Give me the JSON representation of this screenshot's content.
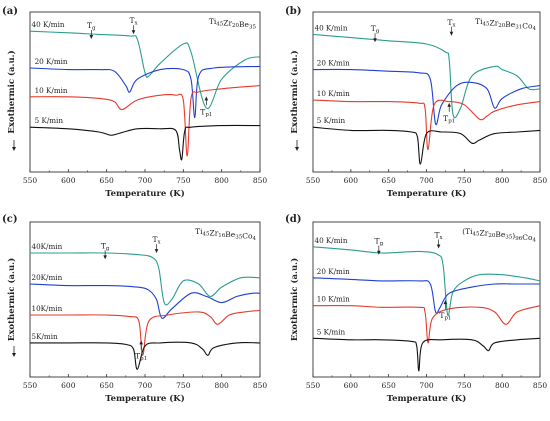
{
  "chart_data": [
    {
      "panel": "(a)",
      "type": "line",
      "title": "Ti45Zr20Be35",
      "title_parts": [
        {
          "t": "Ti",
          "sub": false
        },
        {
          "t": "45",
          "sub": true
        },
        {
          "t": "Zr",
          "sub": false
        },
        {
          "t": "20",
          "sub": true
        },
        {
          "t": "Be",
          "sub": false
        },
        {
          "t": "35",
          "sub": true
        }
      ],
      "xlabel": "Temperature (K)",
      "ylabel": "Exothermic (a.u.)",
      "xlim": [
        550,
        850
      ],
      "xticks": [
        "550",
        "600",
        "650",
        "700",
        "750",
        "800",
        "850"
      ],
      "down_arrow": true,
      "series": [
        {
          "name": "40 K/min",
          "color": "#2a9d8f",
          "baseline": 0.88,
          "x": [
            550,
            600,
            640,
            680,
            690,
            700,
            705,
            720,
            750,
            760,
            780,
            800,
            830,
            850
          ],
          "y": [
            0.88,
            0.87,
            0.86,
            0.85,
            0.83,
            0.62,
            0.6,
            0.68,
            0.8,
            0.75,
            0.4,
            0.58,
            0.7,
            0.72
          ]
        },
        {
          "name": "20 K/min",
          "color": "#1f3fd1",
          "baseline": 0.65,
          "x": [
            550,
            600,
            640,
            660,
            675,
            680,
            690,
            720,
            750,
            760,
            765,
            770,
            790,
            850
          ],
          "y": [
            0.65,
            0.64,
            0.64,
            0.63,
            0.54,
            0.5,
            0.58,
            0.64,
            0.64,
            0.58,
            0.34,
            0.6,
            0.65,
            0.66
          ]
        },
        {
          "name": "10 K/min",
          "color": "#e53b2c",
          "baseline": 0.47,
          "x": [
            550,
            600,
            640,
            660,
            670,
            690,
            720,
            740,
            750,
            755,
            760,
            770,
            800,
            850
          ],
          "y": [
            0.47,
            0.47,
            0.46,
            0.44,
            0.39,
            0.45,
            0.48,
            0.48,
            0.45,
            0.1,
            0.46,
            0.5,
            0.52,
            0.54
          ]
        },
        {
          "name": "5 K/min",
          "color": "#111111",
          "baseline": 0.28,
          "x": [
            550,
            600,
            640,
            655,
            665,
            690,
            720,
            740,
            745,
            748,
            752,
            760,
            800,
            850
          ],
          "y": [
            0.28,
            0.27,
            0.25,
            0.23,
            0.24,
            0.27,
            0.27,
            0.26,
            0.14,
            0.08,
            0.26,
            0.28,
            0.29,
            0.29
          ]
        }
      ],
      "annotations": [
        {
          "kind": "Tg",
          "label": "T",
          "sub": "g",
          "x": 630,
          "y": 0.9
        },
        {
          "kind": "Tx",
          "label": "T",
          "sub": "x",
          "x": 685,
          "y": 0.93
        },
        {
          "kind": "Tp1",
          "label": "T",
          "sub": "p1",
          "x": 780,
          "y": 0.36
        }
      ],
      "rate_labels": [
        "40 K/min",
        "20 K/min",
        "10 K/min",
        "5 K/min"
      ]
    },
    {
      "panel": "(b)",
      "type": "line",
      "title": "Ti45Zr20Be31Co4",
      "title_parts": [
        {
          "t": "Ti",
          "sub": false
        },
        {
          "t": "45",
          "sub": true
        },
        {
          "t": "Zr",
          "sub": false
        },
        {
          "t": "20",
          "sub": true
        },
        {
          "t": "Be",
          "sub": false
        },
        {
          "t": "31",
          "sub": true
        },
        {
          "t": "Co",
          "sub": false
        },
        {
          "t": "4",
          "sub": true
        }
      ],
      "xlabel": "Temperature (K)",
      "ylabel": "Exothermic (a.u.)",
      "xlim": [
        550,
        850
      ],
      "xticks": [
        "550",
        "600",
        "650",
        "700",
        "750",
        "800",
        "850"
      ],
      "down_arrow": true,
      "series": [
        {
          "name": "40 K/min",
          "color": "#2a9d8f",
          "baseline": 0.86,
          "x": [
            550,
            600,
            650,
            700,
            725,
            730,
            735,
            745,
            760,
            790,
            800,
            820,
            835,
            850
          ],
          "y": [
            0.86,
            0.84,
            0.82,
            0.8,
            0.75,
            0.7,
            0.36,
            0.4,
            0.6,
            0.66,
            0.64,
            0.6,
            0.52,
            0.52
          ]
        },
        {
          "name": "20 K/min",
          "color": "#1f3fd1",
          "baseline": 0.64,
          "x": [
            550,
            600,
            650,
            690,
            705,
            712,
            720,
            740,
            760,
            780,
            790,
            800,
            825,
            850
          ],
          "y": [
            0.64,
            0.64,
            0.63,
            0.62,
            0.58,
            0.3,
            0.42,
            0.54,
            0.56,
            0.52,
            0.4,
            0.46,
            0.52,
            0.54
          ]
        },
        {
          "name": "10 K/min",
          "color": "#e53b2c",
          "baseline": 0.45,
          "x": [
            550,
            600,
            650,
            690,
            698,
            702,
            710,
            730,
            750,
            770,
            780,
            790,
            820,
            850
          ],
          "y": [
            0.45,
            0.44,
            0.44,
            0.43,
            0.4,
            0.14,
            0.42,
            0.44,
            0.42,
            0.33,
            0.35,
            0.38,
            0.42,
            0.44
          ]
        },
        {
          "name": "5 K/min",
          "color": "#111111",
          "baseline": 0.28,
          "x": [
            550,
            600,
            650,
            680,
            688,
            692,
            700,
            720,
            745,
            760,
            770,
            790,
            820,
            850
          ],
          "y": [
            0.28,
            0.26,
            0.26,
            0.25,
            0.22,
            0.05,
            0.24,
            0.25,
            0.24,
            0.18,
            0.2,
            0.24,
            0.25,
            0.26
          ]
        }
      ],
      "annotations": [
        {
          "kind": "Tg",
          "label": "T",
          "sub": "g",
          "x": 632,
          "y": 0.88
        },
        {
          "kind": "Tx",
          "label": "T",
          "sub": "x",
          "x": 733,
          "y": 0.92
        },
        {
          "kind": "Tp1",
          "label": "T",
          "sub": "p1",
          "x": 730,
          "y": 0.32
        }
      ],
      "rate_labels": [
        "40 K/min",
        "20 K/min",
        "10 K/min",
        "5 K/min"
      ]
    },
    {
      "panel": "(c)",
      "type": "line",
      "title": "Ti45Zr16Be35Co4",
      "title_parts": [
        {
          "t": "Ti",
          "sub": false
        },
        {
          "t": "45",
          "sub": true
        },
        {
          "t": "Zr",
          "sub": false
        },
        {
          "t": "16",
          "sub": true
        },
        {
          "t": "Be",
          "sub": false
        },
        {
          "t": "35",
          "sub": true
        },
        {
          "t": "Co",
          "sub": false
        },
        {
          "t": "4",
          "sub": true
        }
      ],
      "xlabel": "Temperature (K)",
      "ylabel": "Exothermic (a.u.)",
      "xlim": [
        550,
        850
      ],
      "xticks": [
        "550",
        "600",
        "650",
        "700",
        "750",
        "800",
        "850"
      ],
      "down_arrow": true,
      "series": [
        {
          "name": "40K/min",
          "color": "#2a9d8f",
          "baseline": 0.8,
          "x": [
            550,
            600,
            650,
            690,
            710,
            718,
            725,
            735,
            750,
            770,
            785,
            800,
            825,
            850
          ],
          "y": [
            0.8,
            0.8,
            0.8,
            0.79,
            0.77,
            0.7,
            0.48,
            0.5,
            0.62,
            0.6,
            0.52,
            0.58,
            0.64,
            0.64
          ]
        },
        {
          "name": "20K/min",
          "color": "#1f3fd1",
          "baseline": 0.6,
          "x": [
            550,
            600,
            650,
            690,
            705,
            715,
            722,
            735,
            760,
            780,
            800,
            820,
            840,
            850
          ],
          "y": [
            0.6,
            0.59,
            0.59,
            0.58,
            0.56,
            0.5,
            0.38,
            0.44,
            0.54,
            0.52,
            0.48,
            0.52,
            0.54,
            0.54
          ]
        },
        {
          "name": "10K/min",
          "color": "#e53b2c",
          "baseline": 0.4,
          "x": [
            550,
            600,
            650,
            680,
            692,
            697,
            705,
            730,
            770,
            785,
            795,
            810,
            830,
            850
          ],
          "y": [
            0.4,
            0.4,
            0.4,
            0.39,
            0.36,
            0.14,
            0.36,
            0.4,
            0.42,
            0.39,
            0.34,
            0.4,
            0.42,
            0.43
          ]
        },
        {
          "name": "5K/min",
          "color": "#111111",
          "baseline": 0.22,
          "x": [
            550,
            600,
            650,
            675,
            685,
            690,
            700,
            720,
            760,
            775,
            782,
            790,
            820,
            850
          ],
          "y": [
            0.22,
            0.22,
            0.22,
            0.21,
            0.18,
            0.05,
            0.2,
            0.22,
            0.22,
            0.18,
            0.14,
            0.19,
            0.22,
            0.22
          ]
        }
      ],
      "annotations": [
        {
          "kind": "Tg",
          "label": "T",
          "sub": "g",
          "x": 648,
          "y": 0.83
        },
        {
          "kind": "Tx",
          "label": "T",
          "sub": "x",
          "x": 715,
          "y": 0.87
        },
        {
          "kind": "Tp1",
          "label": "T",
          "sub": "p1",
          "x": 695,
          "y": 0.12
        }
      ],
      "rate_labels": [
        "40K/min",
        "20K/min",
        "10K/min",
        "5K/min"
      ]
    },
    {
      "panel": "(d)",
      "type": "line",
      "title": "(Ti45Zr20Be35)96Co4",
      "title_parts": [
        {
          "t": "(Ti",
          "sub": false
        },
        {
          "t": "45",
          "sub": true
        },
        {
          "t": "Zr",
          "sub": false
        },
        {
          "t": "20",
          "sub": true
        },
        {
          "t": "Be",
          "sub": false
        },
        {
          "t": "35",
          "sub": true
        },
        {
          "t": ")",
          "sub": false
        },
        {
          "t": "96",
          "sub": true
        },
        {
          "t": "Co",
          "sub": false
        },
        {
          "t": "4",
          "sub": true
        }
      ],
      "xlabel": "Temperature (K)",
      "ylabel": "Exothermic (a.u.)",
      "xlim": [
        550,
        850
      ],
      "xticks": [
        "550",
        "600",
        "650",
        "700",
        "750",
        "800",
        "850"
      ],
      "down_arrow": false,
      "series": [
        {
          "name": "40 K/min",
          "color": "#2a9d8f",
          "baseline": 0.84,
          "x": [
            550,
            600,
            640,
            690,
            715,
            722,
            728,
            735,
            750,
            770,
            800,
            830,
            850
          ],
          "y": [
            0.84,
            0.82,
            0.8,
            0.81,
            0.79,
            0.72,
            0.4,
            0.55,
            0.62,
            0.66,
            0.66,
            0.64,
            0.62
          ]
        },
        {
          "name": "20 K/min",
          "color": "#1f3fd1",
          "baseline": 0.64,
          "x": [
            550,
            600,
            640,
            690,
            705,
            712,
            718,
            730,
            760,
            790,
            820,
            850
          ],
          "y": [
            0.64,
            0.63,
            0.62,
            0.62,
            0.6,
            0.42,
            0.45,
            0.54,
            0.58,
            0.6,
            0.6,
            0.6
          ]
        },
        {
          "name": "10 K/min",
          "color": "#e53b2c",
          "baseline": 0.46,
          "x": [
            550,
            600,
            640,
            690,
            698,
            702,
            708,
            730,
            770,
            790,
            805,
            820,
            850
          ],
          "y": [
            0.46,
            0.46,
            0.45,
            0.45,
            0.42,
            0.22,
            0.38,
            0.44,
            0.45,
            0.42,
            0.34,
            0.42,
            0.46
          ]
        },
        {
          "name": "5 K/min",
          "color": "#111111",
          "baseline": 0.25,
          "x": [
            550,
            600,
            640,
            680,
            687,
            690,
            695,
            720,
            760,
            775,
            782,
            790,
            820,
            850
          ],
          "y": [
            0.25,
            0.24,
            0.24,
            0.23,
            0.2,
            0.04,
            0.22,
            0.24,
            0.24,
            0.2,
            0.17,
            0.22,
            0.24,
            0.25
          ]
        }
      ],
      "annotations": [
        {
          "kind": "Tg",
          "label": "T",
          "sub": "g",
          "x": 637,
          "y": 0.86
        },
        {
          "kind": "Tx",
          "label": "T",
          "sub": "x",
          "x": 716,
          "y": 0.9
        },
        {
          "kind": "Tp1",
          "label": "T",
          "sub": "p1",
          "x": 725,
          "y": 0.38
        }
      ],
      "rate_labels": [
        "40 K/min",
        "20 K/min",
        "10 K/min",
        "5 K/min"
      ]
    }
  ]
}
